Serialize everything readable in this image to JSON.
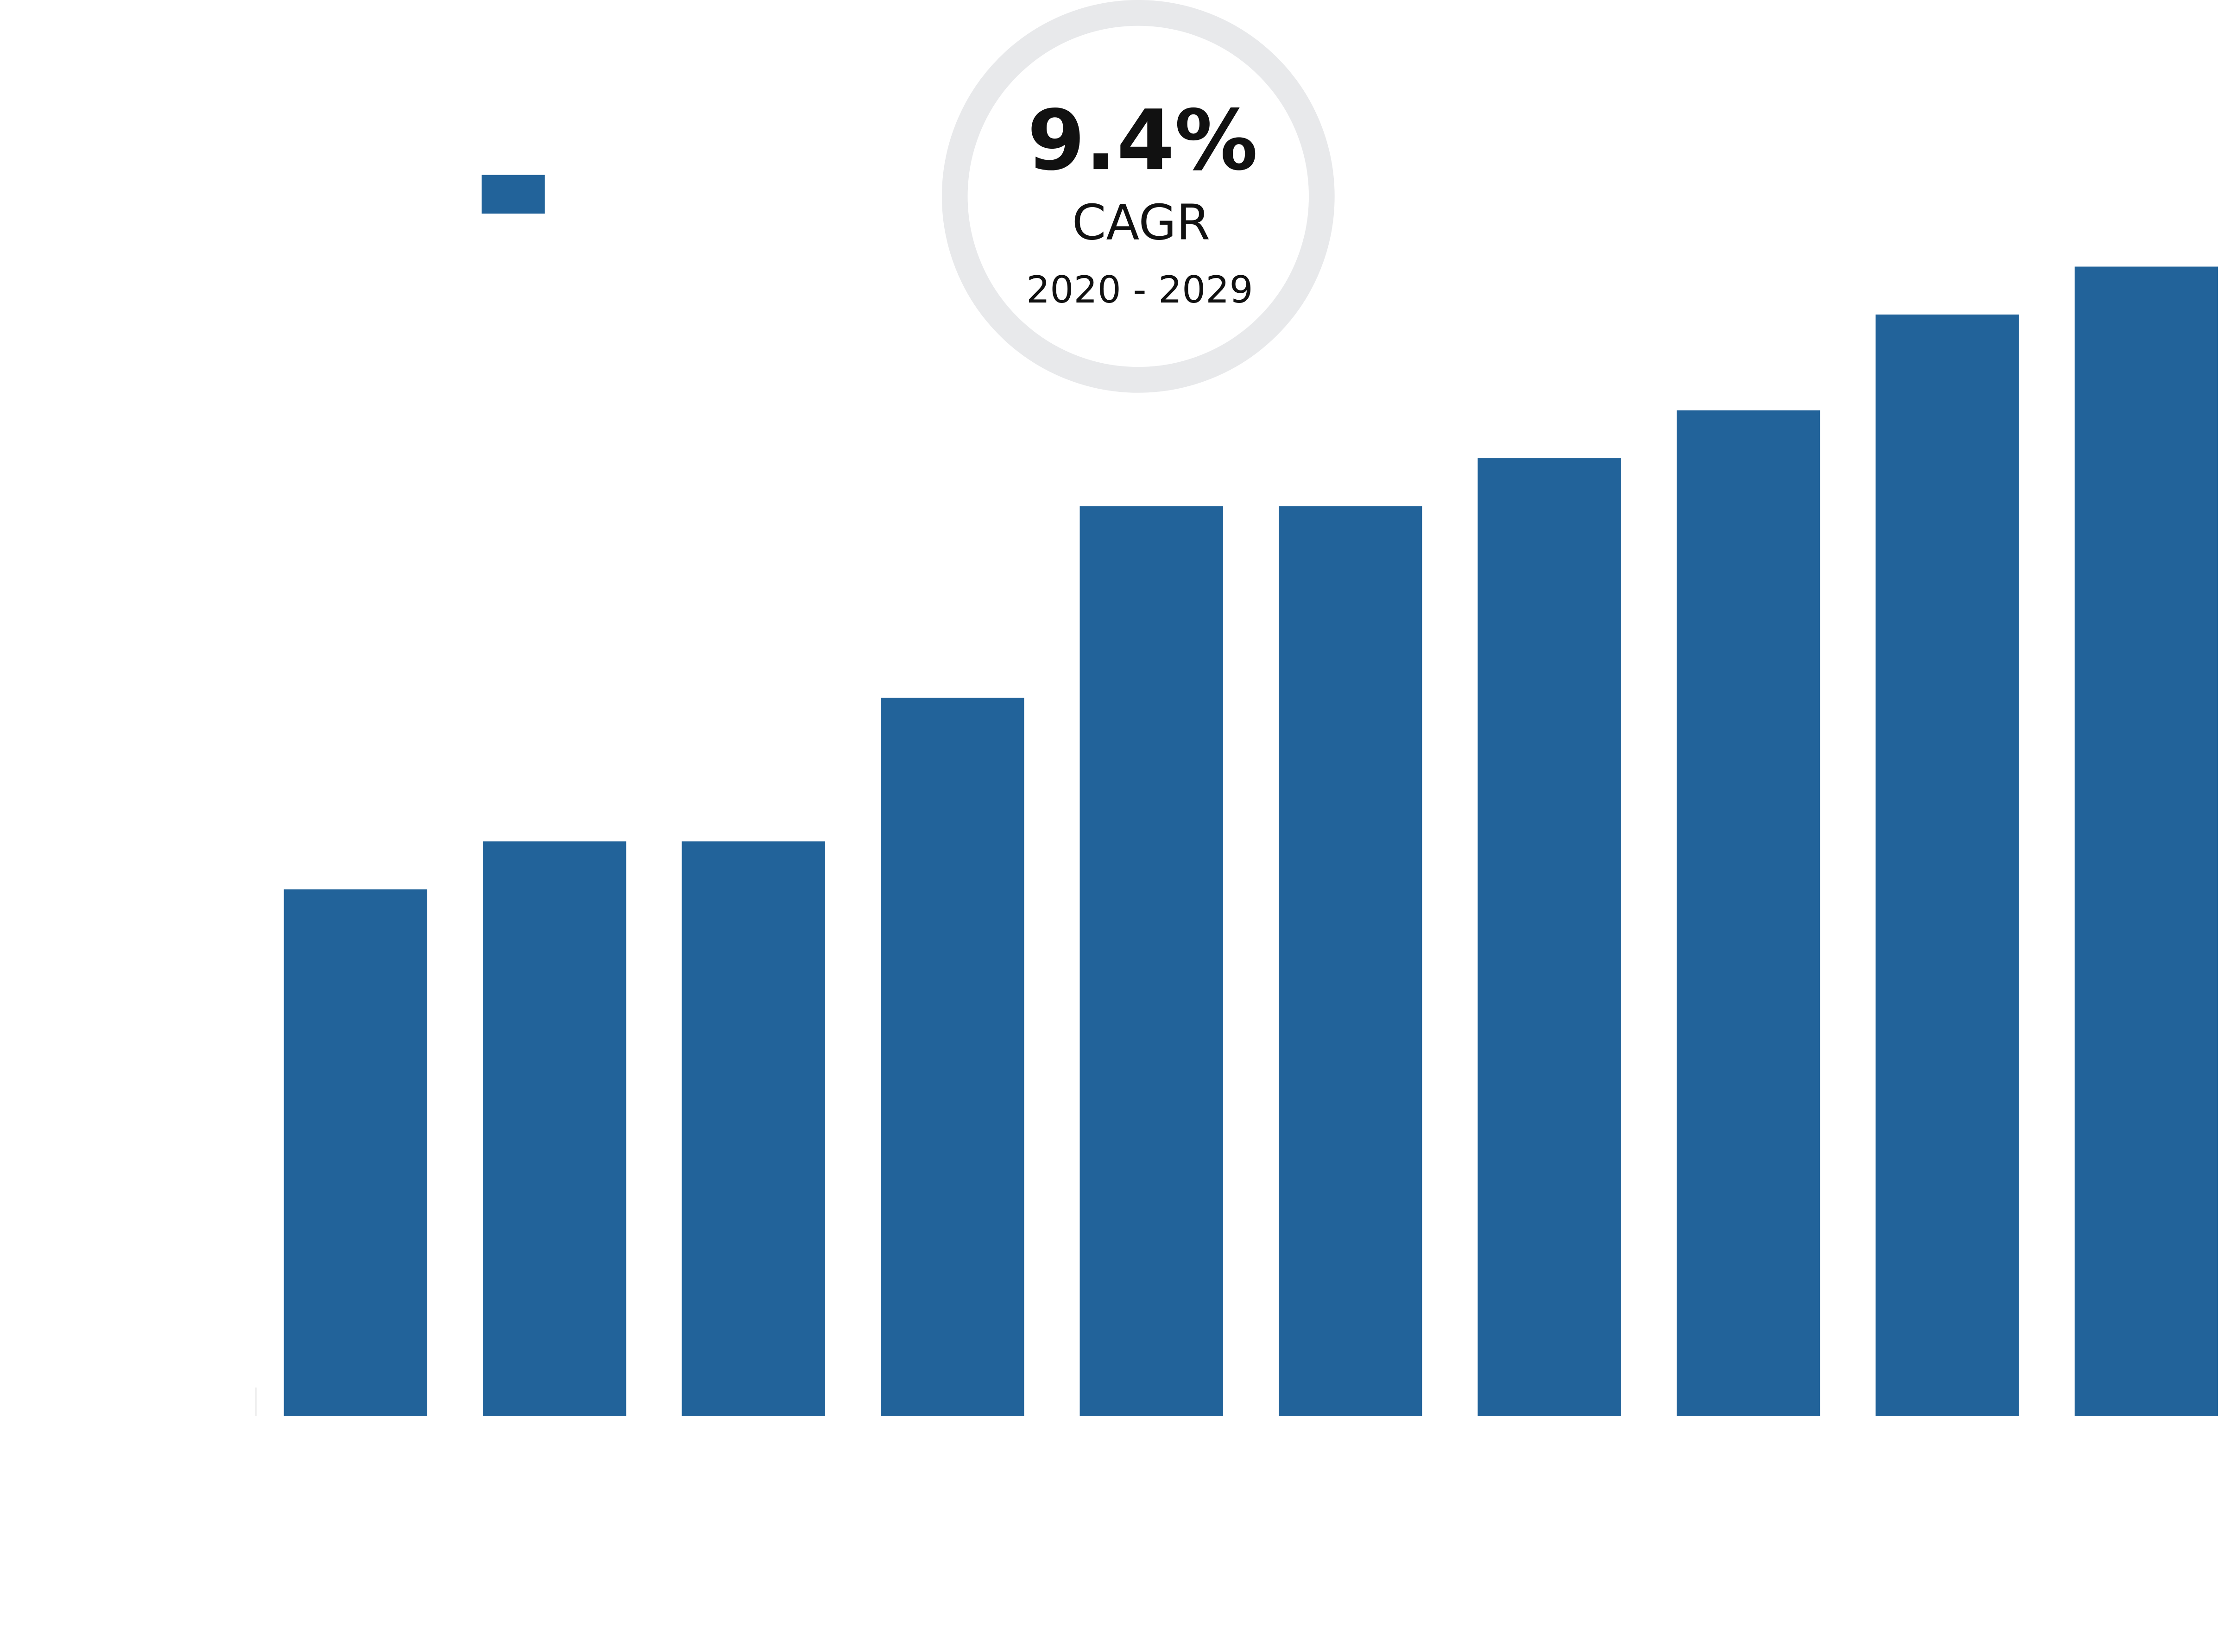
{
  "chart_data": {
    "type": "bar",
    "values": [
      11,
      12,
      12,
      15,
      19,
      19,
      20,
      21,
      23,
      24
    ],
    "color": "#22639a",
    "ylim": [
      0,
      24
    ],
    "annotation": {
      "value": "9.4%",
      "label": "CAGR",
      "period": "2020 - 2029"
    }
  }
}
